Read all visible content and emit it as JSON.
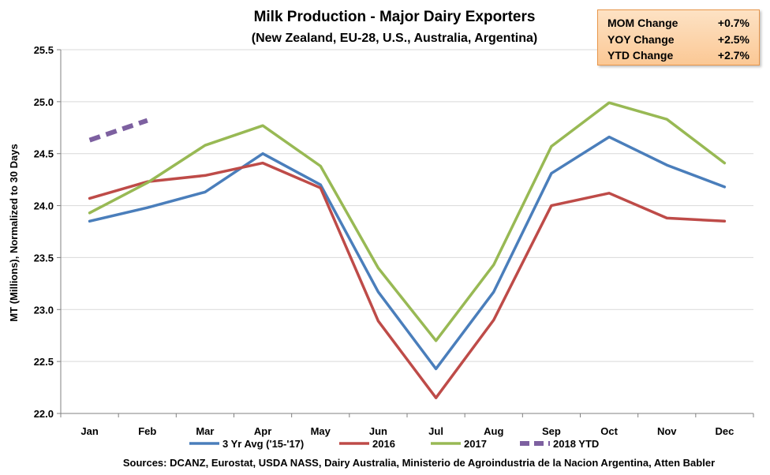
{
  "stats": [
    {
      "label": "MOM Change",
      "value": "+0.7%"
    },
    {
      "label": "YOY Change",
      "value": "+2.5%"
    },
    {
      "label": "YTD Change",
      "value": "+2.7%"
    }
  ],
  "chart_data": {
    "type": "line",
    "title": "Milk Production - Major Dairy Exporters",
    "subtitle": "(New Zealand, EU-28, U.S., Australia, Argentina)",
    "xlabel": "",
    "ylabel": "MT (Millions), Normalized to 30 Days",
    "ylim": [
      22.0,
      25.5
    ],
    "yticks": [
      "22.0",
      "22.5",
      "23.0",
      "23.5",
      "24.0",
      "24.5",
      "25.0",
      "25.5"
    ],
    "categories": [
      "Jan",
      "Feb",
      "Mar",
      "Apr",
      "May",
      "Jun",
      "Jul",
      "Aug",
      "Sep",
      "Oct",
      "Nov",
      "Dec"
    ],
    "grid": "horizontal",
    "legend_position": "bottom",
    "series": [
      {
        "name": "3 Yr Avg ('15-'17)",
        "color": "#4a7ebb",
        "dash": "solid",
        "values": [
          23.85,
          23.98,
          24.13,
          24.5,
          24.2,
          23.17,
          22.43,
          23.17,
          24.31,
          24.66,
          24.39,
          24.18
        ]
      },
      {
        "name": "2016",
        "color": "#be4b48",
        "dash": "solid",
        "values": [
          24.07,
          24.23,
          24.29,
          24.41,
          24.17,
          22.89,
          22.15,
          22.9,
          24.0,
          24.12,
          23.88,
          23.85
        ]
      },
      {
        "name": "2017",
        "color": "#98b954",
        "dash": "solid",
        "values": [
          23.93,
          24.22,
          24.58,
          24.77,
          24.38,
          23.4,
          22.7,
          23.43,
          24.57,
          24.99,
          24.83,
          24.41
        ]
      },
      {
        "name": "2018 YTD",
        "color": "#7d60a0",
        "dash": "dashed",
        "values": [
          24.63,
          24.82,
          null,
          null,
          null,
          null,
          null,
          null,
          null,
          null,
          null,
          null
        ]
      }
    ],
    "source": "Sources: DCANZ, Eurostat, USDA NASS, Dairy Australia, Ministerio de Agroindustria de la Nacion Argentina, Atten Babler"
  }
}
